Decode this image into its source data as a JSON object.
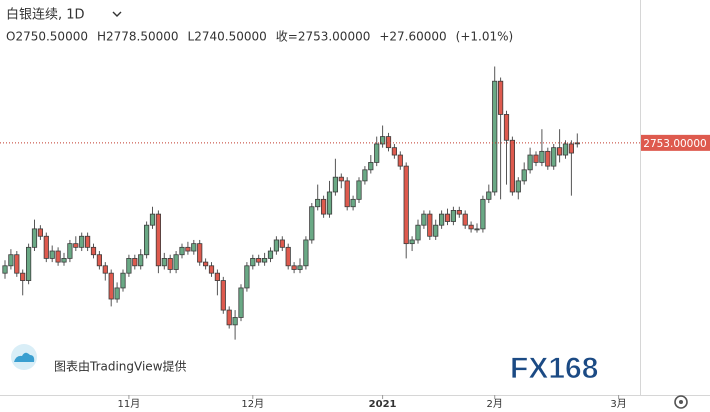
{
  "chart_data": {
    "type": "candlestick",
    "title": "白银连续, 1D",
    "header": [
      "O2750.50000",
      "H2778.50000",
      "L2740.50000",
      "收=2753.00000",
      "+27.60000",
      "(+1.01%)"
    ],
    "last_price_label": "2753.00000",
    "attribution": "图表由TradingView提供",
    "logo": "FX168",
    "up_color": "#6aa985",
    "down_color": "#de5a4e",
    "ylim": [
      2070,
      3140
    ],
    "categories": [
      null,
      null,
      null,
      null,
      null,
      null,
      null,
      null,
      null,
      null,
      null,
      null,
      null,
      null,
      null,
      null,
      null,
      null,
      null,
      null,
      null,
      "11月",
      null,
      null,
      null,
      null,
      null,
      null,
      null,
      null,
      null,
      null,
      null,
      null,
      null,
      null,
      null,
      null,
      null,
      null,
      null,
      null,
      "12月",
      null,
      null,
      null,
      null,
      null,
      null,
      null,
      null,
      null,
      null,
      null,
      null,
      null,
      null,
      null,
      null,
      null,
      null,
      null,
      null,
      null,
      "2021",
      null,
      null,
      null,
      null,
      null,
      null,
      null,
      null,
      null,
      null,
      null,
      null,
      null,
      null,
      null,
      null,
      null,
      null,
      "2月",
      null,
      null,
      null,
      null,
      null,
      null,
      null,
      null,
      null,
      null,
      null,
      null,
      null,
      null,
      null,
      null,
      null,
      null,
      null,
      null,
      "3月",
      null,
      null,
      null,
      null,
      null
    ],
    "open": [
      2400,
      2420,
      2450,
      2400,
      2380,
      2470,
      2520,
      2500,
      2440,
      2460,
      2430,
      2440,
      2480,
      2470,
      2500,
      2470,
      2450,
      2420,
      2400,
      2330,
      2360,
      2400,
      2440,
      2420,
      2450,
      2530,
      2560,
      2420,
      2440,
      2410,
      2450,
      2470,
      2460,
      2480,
      2430,
      2420,
      2400,
      2380,
      2300,
      2260,
      2280,
      2360,
      2420,
      2440,
      2430,
      2440,
      2460,
      2490,
      2470,
      2420,
      2410,
      2420,
      2490,
      2580,
      2600,
      2560,
      2620,
      2660,
      2650,
      2580,
      2600,
      2650,
      2680,
      2700,
      2750,
      2770,
      2740,
      2720,
      2690,
      2480,
      2490,
      2530,
      2560,
      2500,
      2530,
      2560,
      2540,
      2570,
      2560,
      2530,
      2520,
      2520,
      2600,
      2620,
      2920,
      2830,
      2760,
      2620,
      2650,
      2680,
      2720,
      2700,
      2730,
      2690,
      2740,
      2720,
      2750,
      2750.5,
      null,
      null,
      null,
      null,
      null,
      null,
      null,
      null,
      null,
      null,
      null,
      null
    ],
    "high": [
      2435,
      2465,
      2460,
      2410,
      2480,
      2545,
      2530,
      2510,
      2475,
      2470,
      2455,
      2490,
      2500,
      2510,
      2510,
      2480,
      2460,
      2430,
      2410,
      2375,
      2410,
      2450,
      2450,
      2465,
      2540,
      2580,
      2570,
      2455,
      2450,
      2460,
      2480,
      2485,
      2490,
      2490,
      2440,
      2430,
      2410,
      2390,
      2310,
      2300,
      2370,
      2430,
      2450,
      2450,
      2455,
      2470,
      2500,
      2500,
      2480,
      2430,
      2440,
      2500,
      2590,
      2640,
      2610,
      2650,
      2710,
      2670,
      2660,
      2610,
      2660,
      2690,
      2720,
      2770,
      2800,
      2780,
      2750,
      2730,
      2700,
      2500,
      2545,
      2570,
      2570,
      2545,
      2570,
      2575,
      2580,
      2580,
      2570,
      2540,
      2535,
      2610,
      2640,
      2960,
      2930,
      2840,
      2770,
      2660,
      2700,
      2740,
      2730,
      2790,
      2740,
      2750,
      2790,
      2760,
      2760,
      2778.5,
      null,
      null,
      null,
      null,
      null,
      null,
      null,
      null,
      null,
      null,
      null,
      null
    ],
    "low": [
      2385,
      2410,
      2390,
      2340,
      2370,
      2460,
      2490,
      2430,
      2430,
      2420,
      2420,
      2430,
      2460,
      2460,
      2460,
      2440,
      2410,
      2380,
      2310,
      2320,
      2350,
      2390,
      2410,
      2410,
      2440,
      2520,
      2400,
      2410,
      2400,
      2400,
      2440,
      2450,
      2450,
      2420,
      2410,
      2390,
      2340,
      2290,
      2250,
      2220,
      2270,
      2350,
      2410,
      2420,
      2420,
      2430,
      2450,
      2460,
      2410,
      2400,
      2400,
      2410,
      2480,
      2570,
      2550,
      2550,
      2610,
      2630,
      2570,
      2570,
      2590,
      2640,
      2670,
      2690,
      2740,
      2730,
      2710,
      2680,
      2440,
      2460,
      2480,
      2520,
      2490,
      2490,
      2520,
      2530,
      2530,
      2550,
      2520,
      2510,
      2510,
      2510,
      2590,
      2610,
      2600,
      2640,
      2610,
      2600,
      2640,
      2670,
      2690,
      2690,
      2680,
      2680,
      2700,
      2710,
      2610,
      2740.5,
      null,
      null,
      null,
      null,
      null,
      null,
      null,
      null,
      null,
      null,
      null,
      null
    ],
    "close": [
      2420,
      2450,
      2400,
      2380,
      2470,
      2520,
      2500,
      2440,
      2460,
      2430,
      2440,
      2480,
      2470,
      2500,
      2470,
      2450,
      2420,
      2400,
      2330,
      2360,
      2400,
      2440,
      2420,
      2450,
      2530,
      2560,
      2420,
      2440,
      2410,
      2450,
      2470,
      2460,
      2480,
      2430,
      2420,
      2400,
      2380,
      2300,
      2260,
      2280,
      2360,
      2420,
      2440,
      2430,
      2440,
      2460,
      2490,
      2470,
      2420,
      2410,
      2420,
      2490,
      2580,
      2600,
      2560,
      2620,
      2660,
      2650,
      2580,
      2600,
      2650,
      2680,
      2700,
      2750,
      2770,
      2740,
      2720,
      2690,
      2480,
      2490,
      2530,
      2560,
      2500,
      2530,
      2560,
      2540,
      2570,
      2560,
      2530,
      2520,
      2520,
      2600,
      2620,
      2920,
      2830,
      2760,
      2620,
      2650,
      2680,
      2720,
      2700,
      2730,
      2690,
      2740,
      2720,
      2750,
      2725.4,
      2753,
      null,
      null,
      null,
      null,
      null,
      null,
      null,
      null,
      null,
      null,
      null,
      null
    ]
  }
}
